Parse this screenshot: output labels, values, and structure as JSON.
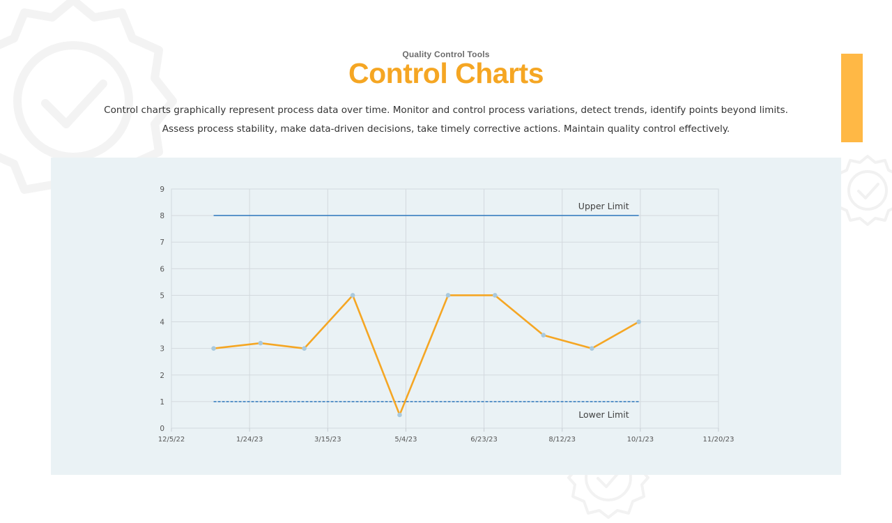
{
  "header": {
    "eyebrow": "Quality Control Tools",
    "title": "Control Charts"
  },
  "description": {
    "line1": "Control charts graphically represent process data over time. Monitor and control process variations, detect trends, identify points beyond limits.",
    "line2": "Assess process stability, make data-driven decisions, take timely corrective actions. Maintain quality control effectively."
  },
  "colors": {
    "accent": "#f5a623",
    "accent_bar": "#ffb845",
    "panel_bg": "#eaf2f5",
    "series_line": "#f5a623",
    "marker": "#a9c9dd",
    "limit_line": "#3a7fc0"
  },
  "icons": [
    "badge-check-icon"
  ],
  "chart_data": {
    "type": "line",
    "title": "",
    "xlabel": "",
    "ylabel": "",
    "x_ticks": [
      "12/5/22",
      "1/24/23",
      "3/15/23",
      "5/4/23",
      "6/23/23",
      "8/12/23",
      "10/1/23",
      "11/20/23"
    ],
    "x_range": [
      "2022-12-05",
      "2023-11-20"
    ],
    "ylim": [
      0,
      9
    ],
    "y_ticks": [
      0,
      1,
      2,
      3,
      4,
      5,
      6,
      7,
      8,
      9
    ],
    "grid": true,
    "series": [
      {
        "x": [
          "2023-01-01",
          "2023-01-31",
          "2023-02-28",
          "2023-03-31",
          "2023-04-30",
          "2023-05-31",
          "2023-06-30",
          "2023-07-31",
          "2023-08-31",
          "2023-09-30"
        ],
        "y": [
          3,
          3.2,
          3,
          5,
          0.5,
          5,
          5,
          3.5,
          3,
          4
        ]
      }
    ],
    "limits": [
      {
        "name": "Upper Limit",
        "value": 8,
        "style": "solid",
        "x_start": "2023-01-01",
        "x_end": "2023-09-30"
      },
      {
        "name": "Lower Limit",
        "value": 1,
        "style": "dashed",
        "x_start": "2023-01-01",
        "x_end": "2023-09-30"
      }
    ]
  }
}
